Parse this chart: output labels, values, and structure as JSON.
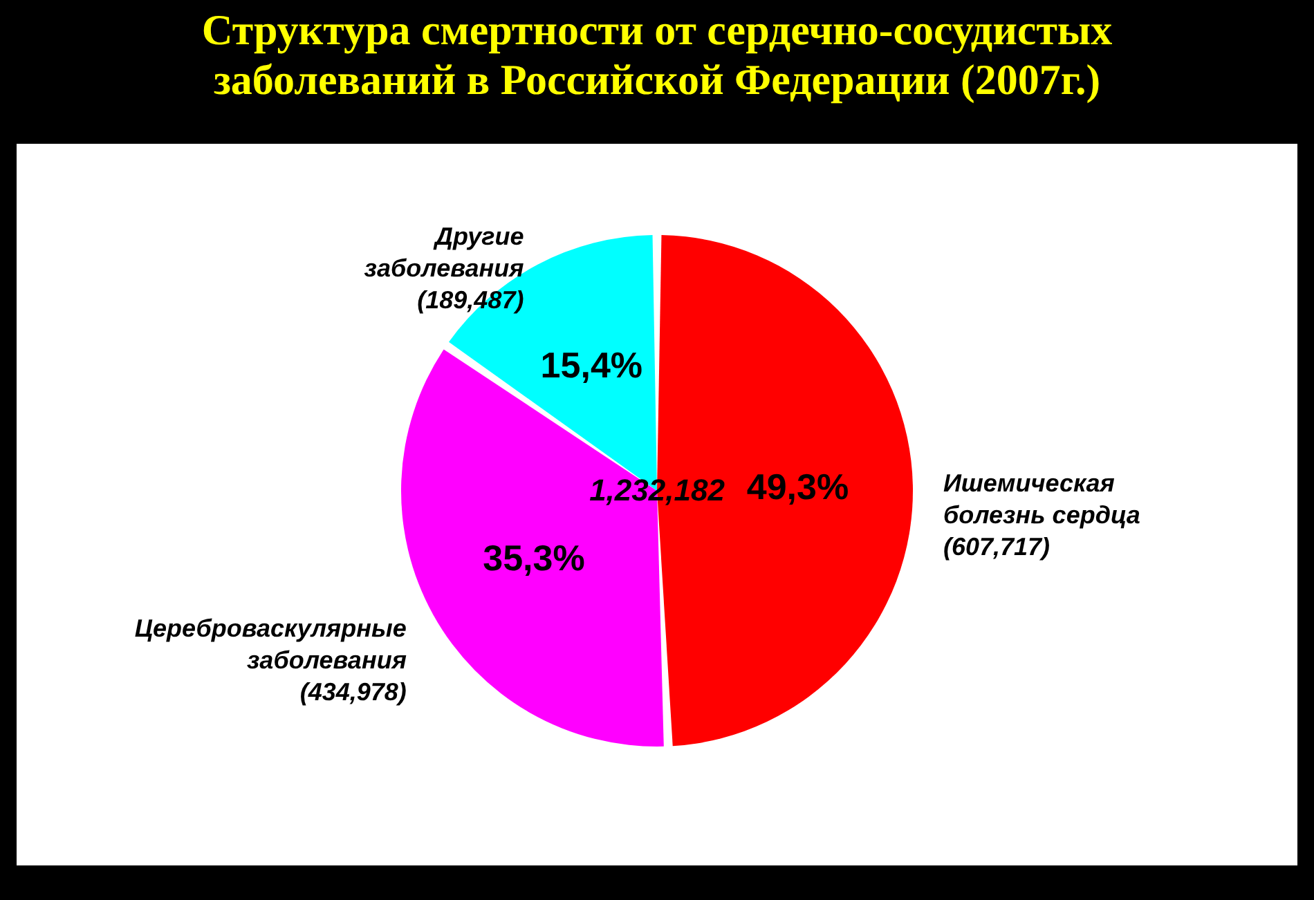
{
  "chart_data": {
    "type": "pie",
    "title": "Структура смертности от сердечно-сосудистых заболеваний в Российской Федерации (2007г.)",
    "categories": [
      "Ишемическая болезнь сердца (607,717)",
      "Цереброваскулярные заболевания (434,978)",
      "Другие заболевания (189,487)"
    ],
    "values": [
      49.3,
      35.3,
      15.4
    ],
    "value_labels": [
      "49,3%",
      "35,3%",
      "15,4%"
    ],
    "colors": [
      "#ff0000",
      "#ff00ff",
      "#00ffff"
    ],
    "annotations": [
      "1,232,182"
    ],
    "legend": false
  }
}
